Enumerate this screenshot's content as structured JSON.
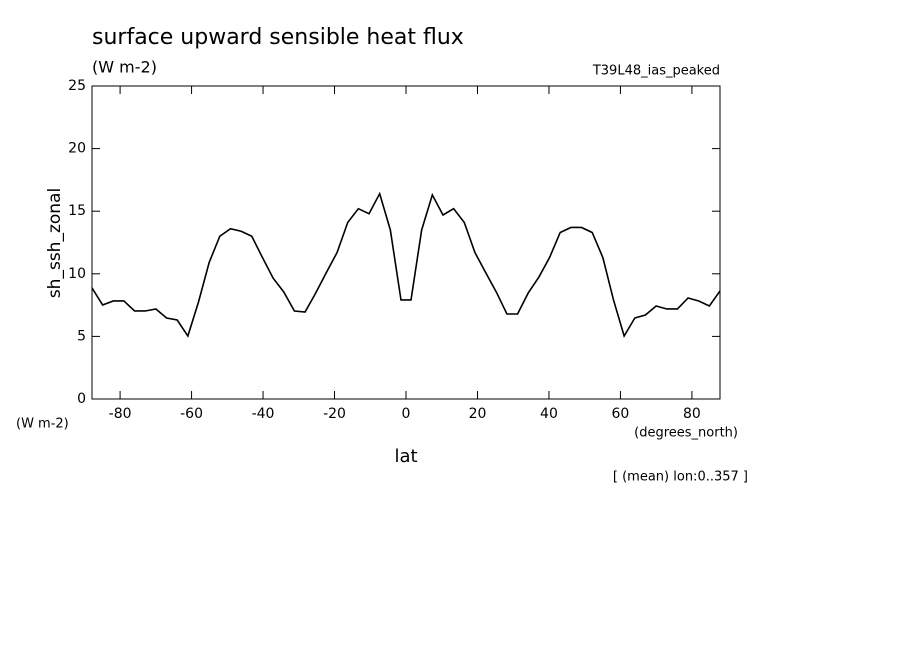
{
  "chart_data": {
    "type": "line",
    "title": "surface upward sensible heat flux",
    "subtitle": "(W m-2)",
    "dataset": "T39L48_ias_peaked",
    "ylabel": "sh_ssh_zonal",
    "yunits": "(W m-2)",
    "xlabel": "lat",
    "xunits": "(degrees_north)",
    "note": "[ (mean) lon:0..357 ]",
    "x": [
      -87.86,
      -84.89,
      -81.91,
      -78.93,
      -75.95,
      -72.97,
      -69.99,
      -67.0,
      -64.02,
      -61.04,
      -58.06,
      -55.08,
      -52.1,
      -49.11,
      -46.13,
      -43.15,
      -40.17,
      -37.19,
      -34.2,
      -31.22,
      -28.24,
      -25.26,
      -22.28,
      -19.29,
      -16.31,
      -13.33,
      -10.35,
      -7.37,
      -4.38,
      -1.4,
      1.4,
      4.38,
      7.37,
      10.35,
      13.33,
      16.31,
      19.29,
      22.28,
      25.26,
      28.24,
      31.22,
      34.2,
      37.19,
      40.17,
      43.15,
      46.13,
      49.11,
      52.1,
      55.08,
      58.06,
      61.04,
      64.02,
      67.0,
      69.99,
      72.97,
      75.95,
      78.93,
      81.91,
      84.89,
      87.86
    ],
    "series": [
      {
        "name": "sh_ssh_zonal",
        "color": "#000000",
        "values": [
          8.87,
          7.51,
          7.83,
          7.83,
          7.03,
          7.03,
          7.19,
          6.47,
          6.31,
          5.03,
          7.75,
          10.9,
          13.0,
          13.6,
          13.4,
          13.0,
          11.3,
          9.66,
          8.55,
          7.03,
          6.95,
          8.47,
          10.1,
          11.7,
          14.1,
          15.2,
          14.8,
          16.4,
          13.5,
          7.91,
          7.91,
          13.5,
          16.3,
          14.7,
          15.2,
          14.1,
          11.7,
          10.1,
          8.55,
          6.79,
          6.79,
          8.47,
          9.74,
          11.3,
          13.3,
          13.7,
          13.7,
          13.3,
          11.3,
          7.91,
          5.03,
          6.47,
          6.71,
          7.43,
          7.19,
          7.19,
          8.07,
          7.83,
          7.43,
          8.63
        ]
      }
    ],
    "xlim": [
      -87.86,
      87.86
    ],
    "xticks": [
      -80,
      -60,
      -40,
      -20,
      0,
      20,
      40,
      60,
      80
    ],
    "ylim": [
      0,
      25
    ],
    "yticks": [
      0,
      5,
      10,
      15,
      20,
      25
    ]
  }
}
